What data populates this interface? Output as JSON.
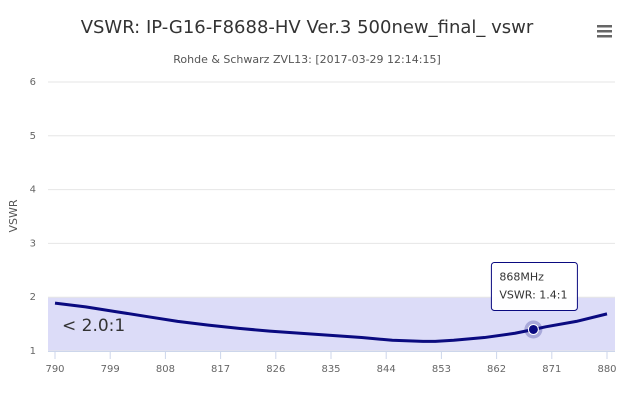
{
  "chart_data": {
    "type": "line",
    "title": "VSWR: IP-G16-F8688-HV Ver.3 500new_final_ vswr",
    "subtitle": "Rohde & Schwarz ZVL13: [2017-03-29 12:14:15]",
    "y_axis_label": "VSWR",
    "x": [
      790,
      795,
      800,
      805,
      810,
      815,
      820,
      825,
      830,
      835,
      840,
      845,
      850,
      852,
      855,
      860,
      865,
      868,
      870,
      875,
      880
    ],
    "series": [
      {
        "name": "VSWR",
        "color": "#0a0a80",
        "values": [
          1.89,
          1.82,
          1.73,
          1.64,
          1.55,
          1.48,
          1.42,
          1.37,
          1.33,
          1.29,
          1.25,
          1.2,
          1.18,
          1.18,
          1.2,
          1.25,
          1.33,
          1.4,
          1.45,
          1.55,
          1.69
        ]
      }
    ],
    "xlim": [
      790,
      880
    ],
    "xticks": [
      790,
      799,
      808,
      817,
      826,
      835,
      844,
      853,
      862,
      871,
      880
    ],
    "ylim": [
      1,
      6
    ],
    "yticks": [
      1,
      2,
      3,
      4,
      5,
      6
    ],
    "grid": true,
    "plot_band": {
      "from": 1,
      "to": 2,
      "label": "< 2.0:1",
      "color": "#dcdcf8"
    },
    "tooltip": {
      "x": 868,
      "label": "868MHz",
      "text": "VSWR: 1.4:1"
    }
  }
}
